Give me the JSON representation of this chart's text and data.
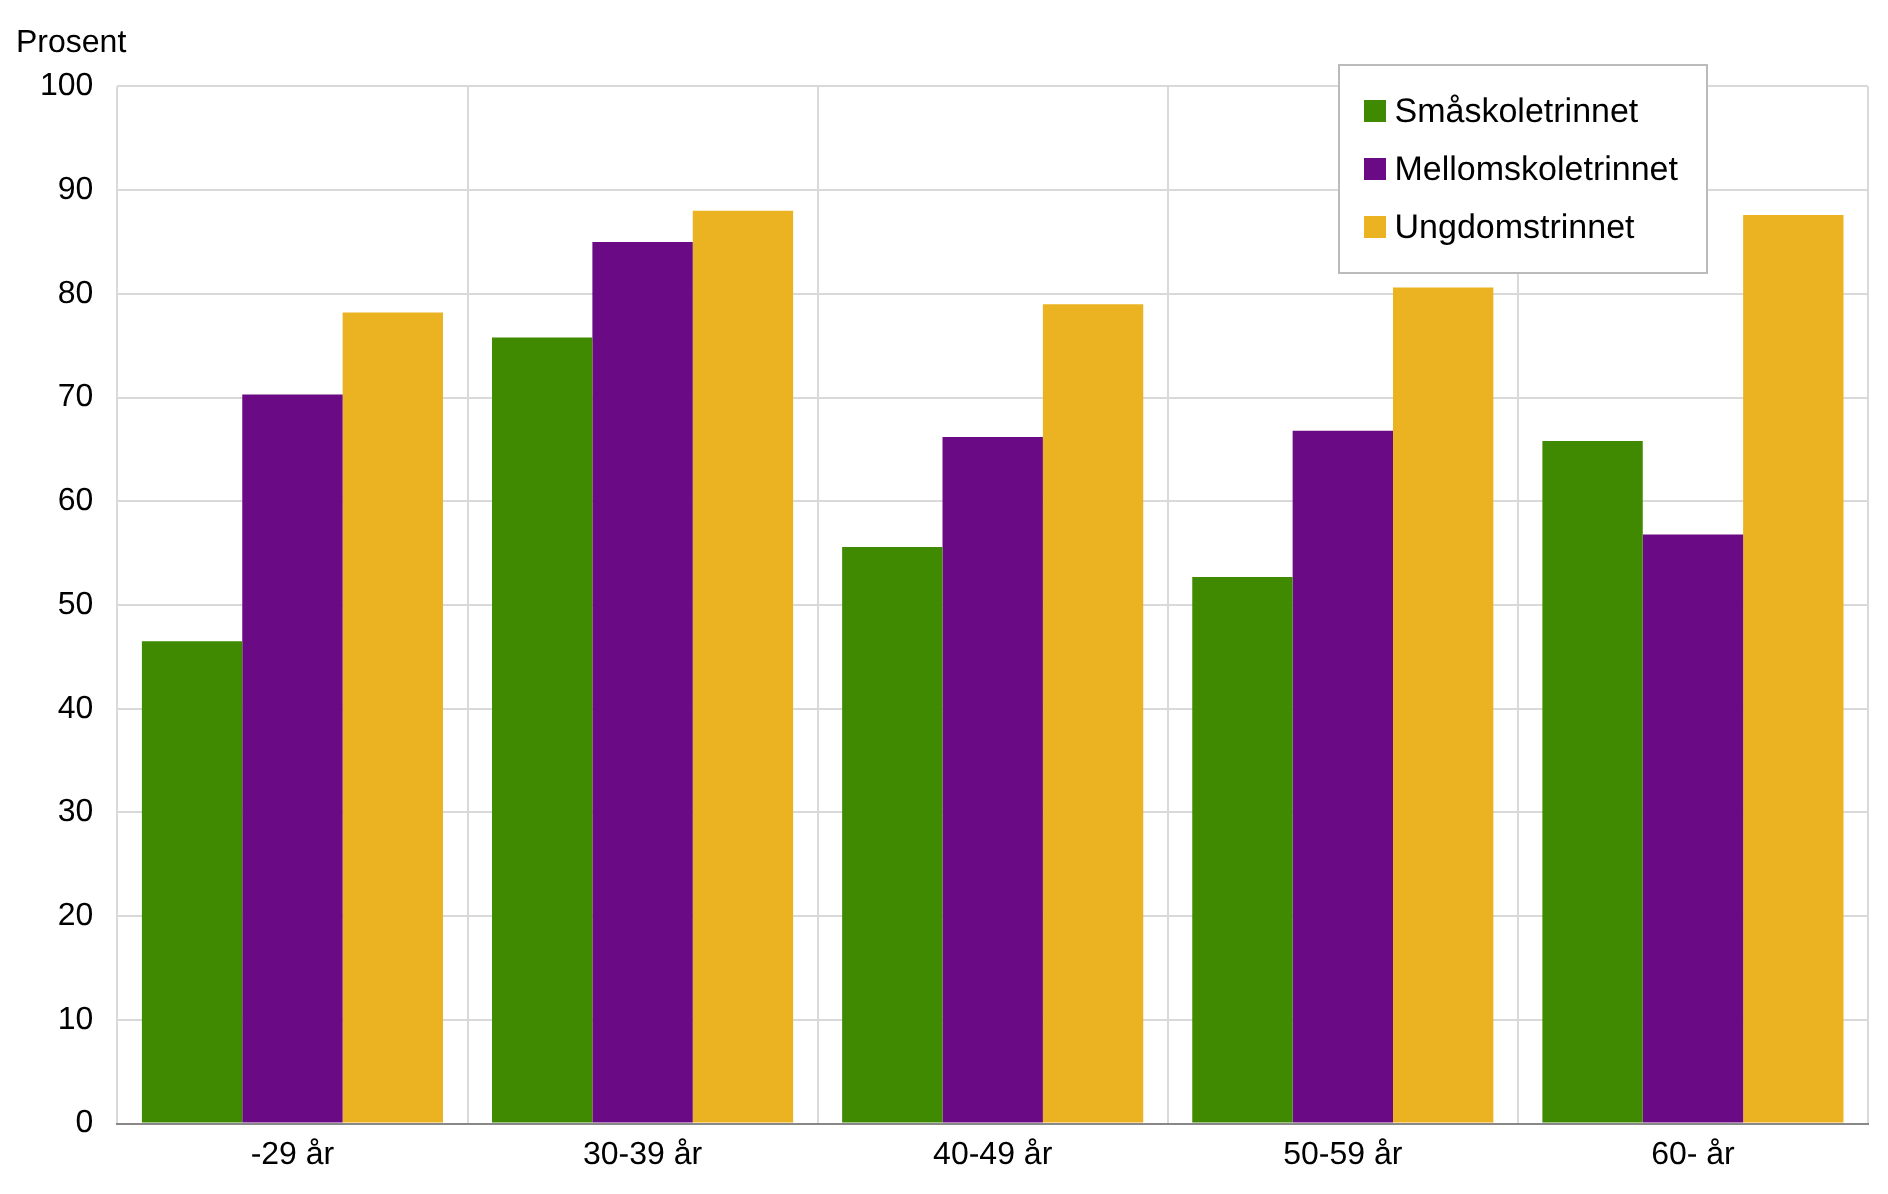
{
  "chart_data": {
    "type": "bar",
    "ylabel": "Prosent",
    "categories": [
      "-29 år",
      "30-39 år",
      "40-49 år",
      "50-59 år",
      "60- år"
    ],
    "series": [
      {
        "name": "Småskoletrinnet",
        "color": "#3f8a00",
        "values": [
          46.5,
          75.8,
          55.6,
          52.7,
          65.8
        ]
      },
      {
        "name": "Mellomskoletrinnet",
        "color": "#6a0a84",
        "values": [
          70.3,
          85.0,
          66.2,
          66.8,
          56.8
        ]
      },
      {
        "name": "Ungdomstrinnet",
        "color": "#ebb322",
        "values": [
          78.2,
          88.0,
          79.0,
          80.6,
          87.6
        ]
      }
    ],
    "ylim": [
      0,
      100
    ],
    "yticks": [
      0,
      10,
      20,
      30,
      40,
      50,
      60,
      70,
      80,
      90,
      100
    ],
    "grid": true,
    "legend": "top right"
  }
}
